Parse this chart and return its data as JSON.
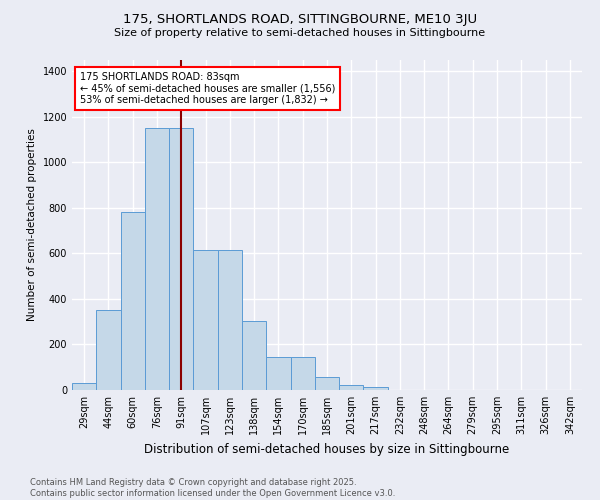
{
  "title1": "175, SHORTLANDS ROAD, SITTINGBOURNE, ME10 3JU",
  "title2": "Size of property relative to semi-detached houses in Sittingbourne",
  "xlabel": "Distribution of semi-detached houses by size in Sittingbourne",
  "ylabel": "Number of semi-detached properties",
  "footnote": "Contains HM Land Registry data © Crown copyright and database right 2025.\nContains public sector information licensed under the Open Government Licence v3.0.",
  "bin_labels": [
    "29sqm",
    "44sqm",
    "60sqm",
    "76sqm",
    "91sqm",
    "107sqm",
    "123sqm",
    "138sqm",
    "154sqm",
    "170sqm",
    "185sqm",
    "201sqm",
    "217sqm",
    "232sqm",
    "248sqm",
    "264sqm",
    "279sqm",
    "295sqm",
    "311sqm",
    "326sqm",
    "342sqm"
  ],
  "bar_values": [
    30,
    350,
    780,
    1150,
    1150,
    615,
    615,
    305,
    145,
    145,
    55,
    20,
    15,
    0,
    0,
    0,
    0,
    0,
    0,
    0,
    0
  ],
  "bar_color": "#c5d8e8",
  "bar_edge_color": "#5b9bd5",
  "annotation_title": "175 SHORTLANDS ROAD: 83sqm",
  "annotation_line1": "← 45% of semi-detached houses are smaller (1,556)",
  "annotation_line2": "53% of semi-detached houses are larger (1,832) →",
  "vline_color": "#8b0000",
  "vline_x": 4.0,
  "ylim": [
    0,
    1450
  ],
  "yticks": [
    0,
    200,
    400,
    600,
    800,
    1000,
    1200,
    1400
  ],
  "background_color": "#eaecf4",
  "grid_color": "#ffffff",
  "title1_fontsize": 9.5,
  "title2_fontsize": 8.0,
  "xlabel_fontsize": 8.5,
  "ylabel_fontsize": 7.5,
  "tick_fontsize": 7.0,
  "annot_fontsize": 7.0,
  "footnote_fontsize": 6.0
}
